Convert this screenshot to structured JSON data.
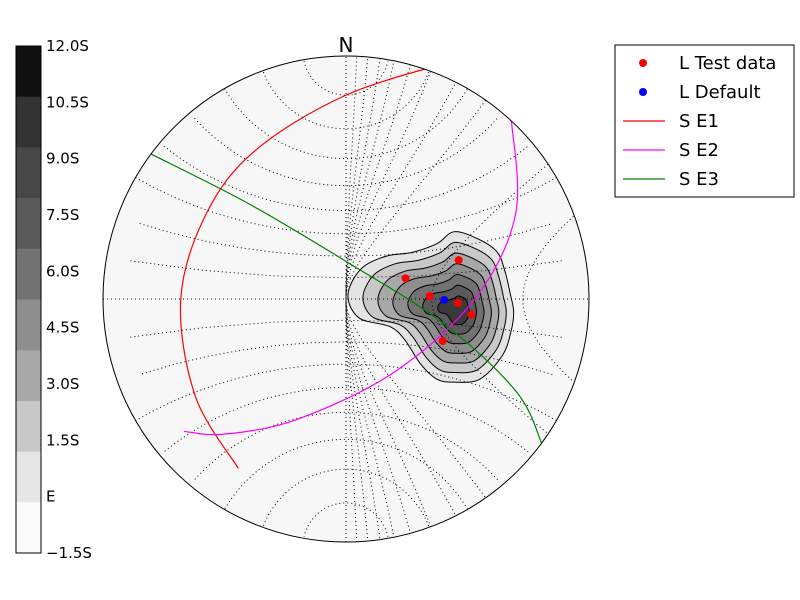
{
  "chart_data": {
    "type": "stereonet",
    "north_label": "N",
    "grid": true,
    "colorbar": {
      "tick_labels": [
        "12.0S",
        "10.5S",
        "9.0S",
        "7.5S",
        "6.0S",
        "4.5S",
        "3.0S",
        "1.5S",
        "E",
        "−1.5S"
      ],
      "colors": [
        "#101010",
        "#333333",
        "#474747",
        "#5a5a5a",
        "#727272",
        "#8e8e8e",
        "#a8a8a8",
        "#c8c8c8",
        "#e6e6e6",
        "#fafafa"
      ]
    },
    "legend": {
      "placement": "top-right",
      "entries": [
        {
          "label": "L Test data",
          "marker": "dot",
          "color": "#ff0000"
        },
        {
          "label": "L Default",
          "marker": "dot",
          "color": "#0000ff"
        },
        {
          "label": "S E1",
          "marker": "line",
          "color": "#ff0000"
        },
        {
          "label": "S E2",
          "marker": "line",
          "color": "#ff00ff"
        },
        {
          "label": "S E3",
          "marker": "line",
          "color": "#008000"
        }
      ]
    },
    "series": [
      {
        "name": "L Test data",
        "type": "point",
        "color": "#ff0000",
        "points": [
          [
            0.464,
            0.16
          ],
          [
            0.245,
            0.085
          ],
          [
            0.344,
            0.012
          ],
          [
            0.461,
            -0.016
          ],
          [
            0.516,
            -0.064
          ],
          [
            0.398,
            -0.173
          ]
        ]
      },
      {
        "name": "L Default",
        "type": "point",
        "color": "#0000ff",
        "points": [
          [
            0.404,
            -0.004
          ]
        ]
      },
      {
        "name": "S E1",
        "type": "line",
        "color": "#ff0000",
        "points": [
          [
            0.432,
            0.977
          ],
          [
            0.0,
            0.839
          ],
          [
            -0.37,
            0.614
          ],
          [
            -0.573,
            0.355
          ],
          [
            -0.68,
            0.0
          ],
          [
            -0.62,
            -0.4
          ],
          [
            -0.443,
            -0.697
          ]
        ]
      },
      {
        "name": "S E2",
        "type": "line",
        "color": "#ff00ff",
        "points": [
          [
            0.681,
            0.733
          ],
          [
            0.698,
            0.35
          ],
          [
            0.53,
            0.0
          ],
          [
            0.2,
            -0.3
          ],
          [
            -0.2,
            -0.495
          ],
          [
            -0.5,
            -0.556
          ],
          [
            -0.667,
            -0.545
          ]
        ]
      },
      {
        "name": "S E3",
        "type": "line",
        "color": "#008000",
        "points": [
          [
            -0.805,
            0.598
          ],
          [
            -0.4,
            0.392
          ],
          [
            0.0,
            0.155
          ],
          [
            0.4,
            -0.1
          ],
          [
            0.7,
            -0.38
          ],
          [
            0.806,
            -0.595
          ]
        ]
      }
    ],
    "density_contours": {
      "levels": 7,
      "center": [
        0.464,
        -0.049
      ],
      "outer_boundary": [
        [
          0.55,
          0.244
        ],
        [
          0.623,
          0.192
        ],
        [
          0.655,
          0.111
        ],
        [
          0.676,
          0.021
        ],
        [
          0.69,
          -0.053
        ],
        [
          0.679,
          -0.134
        ],
        [
          0.644,
          -0.232
        ],
        [
          0.551,
          -0.33
        ],
        [
          0.444,
          -0.342
        ],
        [
          0.374,
          -0.33
        ],
        [
          0.308,
          -0.269
        ],
        [
          0.244,
          -0.171
        ],
        [
          0.182,
          -0.114
        ],
        [
          0.054,
          -0.078
        ],
        [
          0.008,
          0.016
        ],
        [
          0.06,
          0.122
        ],
        [
          0.161,
          0.175
        ],
        [
          0.273,
          0.192
        ],
        [
          0.375,
          0.228
        ],
        [
          0.446,
          0.277
        ]
      ]
    }
  }
}
